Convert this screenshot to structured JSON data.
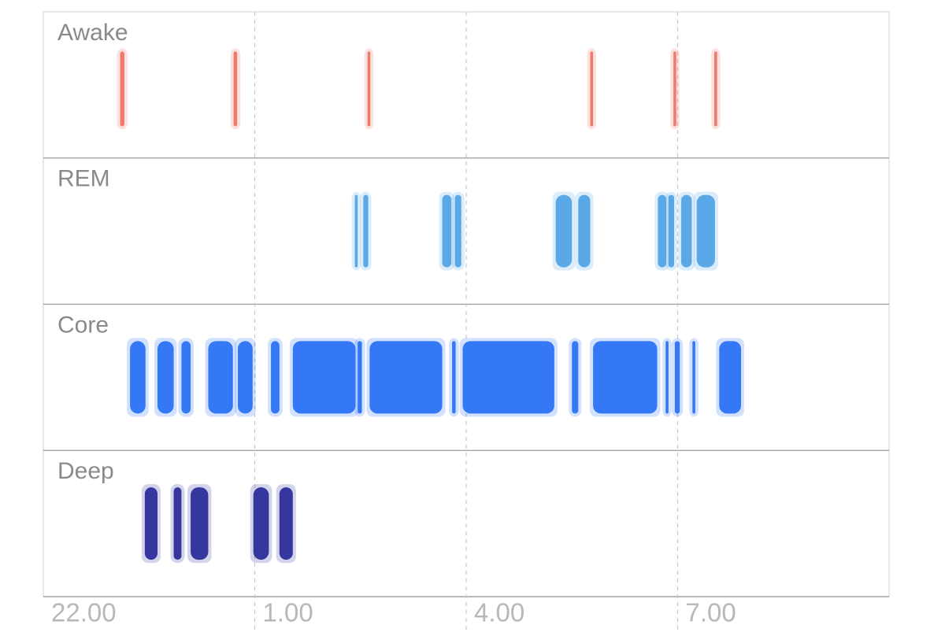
{
  "chart_data": {
    "type": "sleep-stages",
    "categories": [
      "Awake",
      "REM",
      "Core",
      "Deep"
    ],
    "series": [
      {
        "name": "Awake",
        "color": "#f07a6a",
        "intervals": [
          [
            23.09,
            23.15
          ],
          [
            24.7,
            24.75
          ],
          [
            26.6,
            26.64
          ],
          [
            29.76,
            29.8
          ],
          [
            30.94,
            30.98
          ],
          [
            31.52,
            31.56
          ]
        ]
      },
      {
        "name": "REM",
        "color": "#5aa9e6",
        "intervals": [
          [
            26.42,
            26.46
          ],
          [
            26.54,
            26.61
          ],
          [
            27.66,
            27.79
          ],
          [
            27.84,
            27.93
          ],
          [
            29.27,
            29.5
          ],
          [
            29.59,
            29.76
          ],
          [
            30.72,
            30.84
          ],
          [
            30.87,
            30.95
          ],
          [
            31.05,
            31.2
          ],
          [
            31.27,
            31.53
          ]
        ]
      },
      {
        "name": "Core",
        "color": "#3478f6",
        "intervals": [
          [
            23.23,
            23.45
          ],
          [
            23.62,
            23.85
          ],
          [
            23.96,
            24.09
          ],
          [
            24.34,
            24.69
          ],
          [
            24.76,
            24.97
          ],
          [
            25.23,
            25.35
          ],
          [
            25.54,
            26.43
          ],
          [
            26.46,
            26.52
          ],
          [
            26.63,
            27.66
          ],
          [
            27.8,
            27.85
          ],
          [
            27.95,
            29.25
          ],
          [
            29.5,
            29.59
          ],
          [
            29.8,
            30.71
          ],
          [
            30.83,
            30.87
          ],
          [
            30.96,
            31.03
          ],
          [
            31.21,
            31.25
          ],
          [
            31.59,
            31.9
          ]
        ]
      },
      {
        "name": "Deep",
        "color": "#35379e",
        "intervals": [
          [
            23.44,
            23.62
          ],
          [
            23.85,
            23.96
          ],
          [
            24.09,
            24.34
          ],
          [
            24.98,
            25.2
          ],
          [
            25.35,
            25.54
          ]
        ]
      }
    ],
    "xlim": [
      22,
      34
    ],
    "xticks": [
      {
        "value": 22,
        "label": "22.00"
      },
      {
        "value": 25,
        "label": "1.00"
      },
      {
        "value": 28,
        "label": "4.00"
      },
      {
        "value": 31,
        "label": "7.00"
      }
    ],
    "grid": true
  }
}
